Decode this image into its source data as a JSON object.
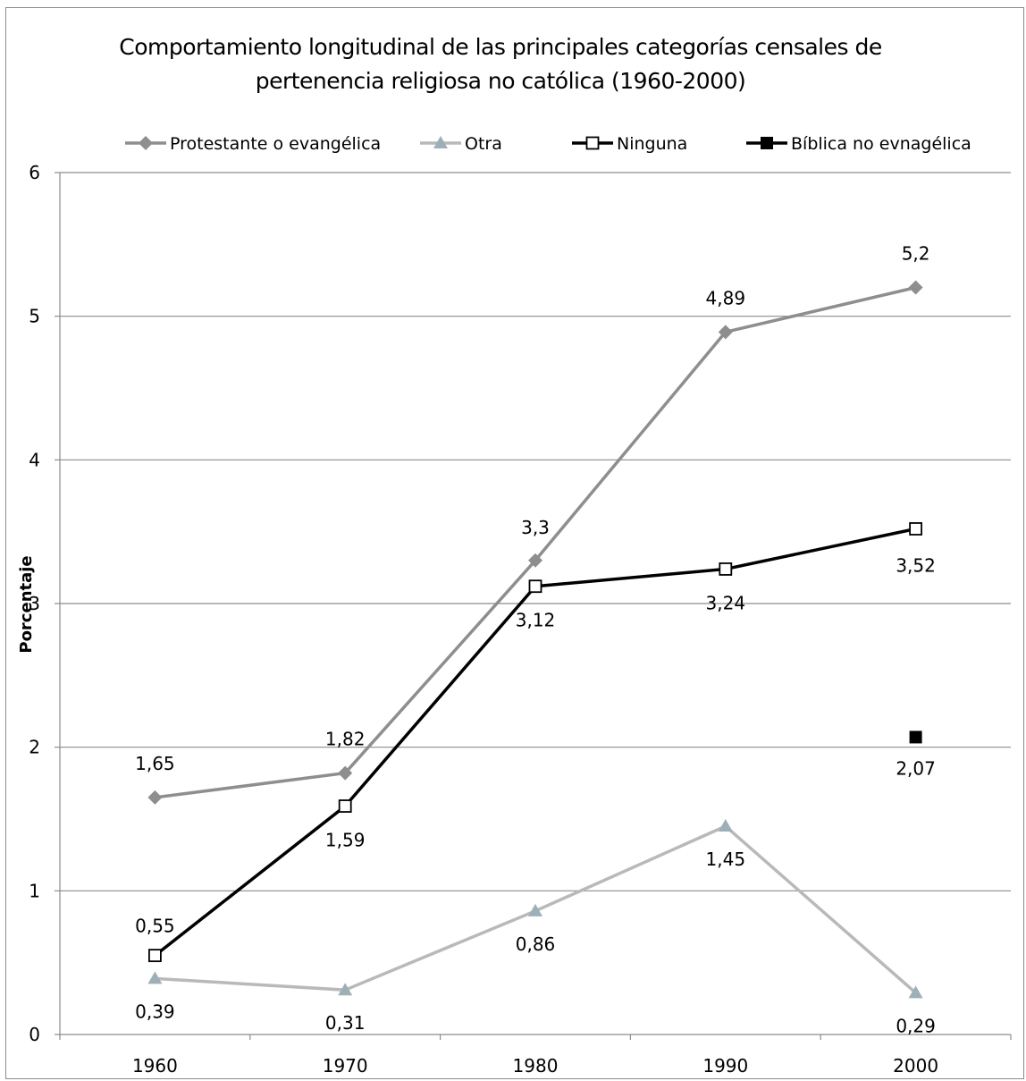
{
  "chart_data": {
    "type": "line",
    "title": "Comportamiento longitudinal de las principales categorías censales de pertenencia religiosa no católica (1960-2000)",
    "title_lines": [
      "Comportamiento longitudinal de las principales categorías censales de",
      "pertenencia religiosa no católica (1960-2000)"
    ],
    "xlabel": "",
    "ylabel": "Porcentaje",
    "categories": [
      "1960",
      "1970",
      "1980",
      "1990",
      "2000"
    ],
    "ylim": [
      0,
      6
    ],
    "yticks": [
      "0",
      "1",
      "2",
      "3",
      "4",
      "5",
      "6"
    ],
    "grid": true,
    "legend_position": "top",
    "series": [
      {
        "name": "Protestante o evangélica",
        "values": [
          1.65,
          1.82,
          3.3,
          4.89,
          5.2
        ],
        "labels": [
          "1,65",
          "1,82",
          "3,3",
          "4,89",
          "5,2"
        ],
        "color": "#8e8e8e",
        "marker": "diamond"
      },
      {
        "name": "Otra",
        "values": [
          0.39,
          0.31,
          0.86,
          1.45,
          0.29
        ],
        "labels": [
          "0,39",
          "0,31",
          "0,86",
          "1,45",
          "0,29"
        ],
        "color": "#b9b9b9",
        "marker_color": "#9db0b8",
        "marker": "triangle"
      },
      {
        "name": "Ninguna",
        "values": [
          0.55,
          1.59,
          3.12,
          3.24,
          3.52
        ],
        "labels": [
          "0,55",
          "1,59",
          "3,12",
          "3,24",
          "3,52"
        ],
        "color": "#000000",
        "marker": "square-open"
      },
      {
        "name": "Bíblica no evnagélica",
        "values": [
          null,
          null,
          null,
          null,
          2.07
        ],
        "labels": [
          "",
          "",
          "",
          "",
          "2,07"
        ],
        "color": "#000000",
        "marker": "square-filled"
      }
    ]
  }
}
